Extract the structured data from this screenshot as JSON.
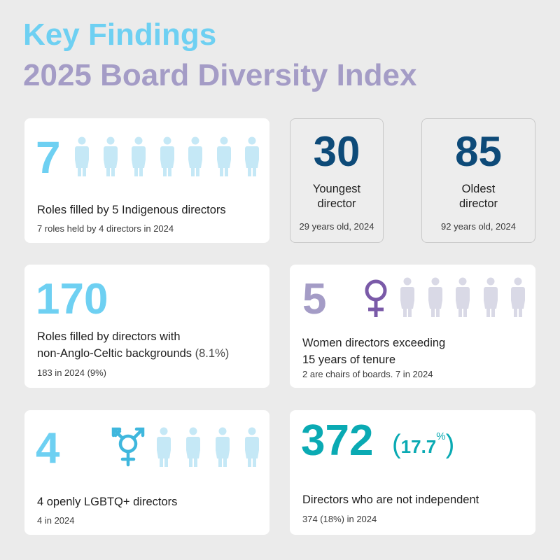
{
  "header": {
    "title": "Key Findings",
    "subtitle": "2025 Board Diversity Index"
  },
  "indigenous": {
    "number": "7",
    "description": "Roles filled by 5 Indigenous directors",
    "note": "7 roles held by 4 directors in 2024",
    "figure_count": 7,
    "figure_color": "#c5e8f6"
  },
  "youngest": {
    "number": "30",
    "label_line1": "Youngest",
    "label_line2": "director",
    "note": "29 years old, 2024"
  },
  "oldest": {
    "number": "85",
    "label_line1": "Oldest",
    "label_line2": "director",
    "note": "92 years old, 2024"
  },
  "non_anglo": {
    "number": "170",
    "description_line1": "Roles filled by directors with",
    "description_line2": "non-Anglo-Celtic backgrounds",
    "percent": "(8.1%)",
    "note": "183 in 2024 (9%)"
  },
  "women_tenure": {
    "number": "5",
    "description_line1": "Women directors exceeding",
    "description_line2": "15 years of tenure",
    "note": "2 are chairs of boards. 7 in 2024",
    "figure_count": 5,
    "figure_color": "#d9d9e6",
    "symbol": "female-symbol"
  },
  "lgbtq": {
    "number": "4",
    "description": "4 openly LGBTQ+ directors",
    "note": "4 in 2024",
    "figure_count": 4,
    "figure_color": "#c5e8f6",
    "symbol": "transgender-symbol"
  },
  "not_independent": {
    "number": "372",
    "paren_open": "(",
    "percent_value": "17.7",
    "percent_sign": "%",
    "paren_close": ")",
    "description": "Directors who are not independent",
    "note": "374 (18%) in 2024"
  },
  "colors": {
    "light_blue": "#6ed0f2",
    "lavender": "#a49cc6",
    "navy": "#0d4a78",
    "teal": "#0aaab3",
    "purple": "#7a5aa8"
  }
}
